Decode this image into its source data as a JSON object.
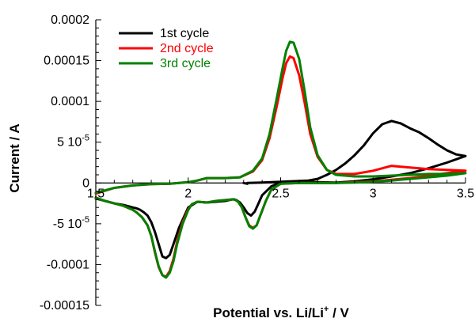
{
  "chart_data": {
    "type": "line",
    "xlabel_parts": [
      "Potential vs. Li/Li",
      "+",
      " / V"
    ],
    "ylabel": "Current / A",
    "xlim": [
      1.5,
      3.5
    ],
    "ylim": [
      -0.00015,
      0.0002
    ],
    "x_ticks": [
      {
        "value": 1.5,
        "label": "1.5"
      },
      {
        "value": 2.0,
        "label": "2"
      },
      {
        "value": 2.5,
        "label": "2.5"
      },
      {
        "value": 3.0,
        "label": "3"
      },
      {
        "value": 3.5,
        "label": "3.5"
      }
    ],
    "y_ticks": [
      {
        "value": -0.00015,
        "label": "-0.00015"
      },
      {
        "value": -0.0001,
        "label": "-0.0001"
      },
      {
        "value": -5e-05,
        "label": "-5 10"
      },
      {
        "value": 0,
        "label": "0"
      },
      {
        "value": 5e-05,
        "label": "5 10"
      },
      {
        "value": 0.0001,
        "label": "0.0001"
      },
      {
        "value": 0.00015,
        "label": "0.00015"
      },
      {
        "value": 0.0002,
        "label": "0.0002"
      }
    ],
    "y_tick_exponent": "-5",
    "grid": false,
    "legend_position": "top-left",
    "series": [
      {
        "name": "1st cycle",
        "color": "#000000",
        "x": [
          2.3,
          2.32,
          2.32,
          2.4,
          2.45,
          2.5,
          2.55,
          2.6,
          2.65,
          2.7,
          2.75,
          2.8,
          2.85,
          2.9,
          2.95,
          3.0,
          3.05,
          3.1,
          3.15,
          3.2,
          3.25,
          3.3,
          3.35,
          3.4,
          3.45,
          3.5,
          3.5,
          3.4,
          3.3,
          3.2,
          3.1,
          3.0,
          2.9,
          2.8,
          2.7,
          2.6,
          2.55,
          2.5,
          2.45,
          2.4,
          2.38,
          2.36,
          2.34,
          2.32,
          2.3,
          2.28,
          2.26,
          2.24,
          2.2,
          2.15,
          2.1,
          2.05,
          2.0,
          1.98,
          1.95,
          1.92,
          1.9,
          1.88,
          1.86,
          1.84,
          1.82,
          1.8,
          1.78,
          1.76,
          1.74,
          1.72,
          1.7,
          1.65,
          1.6,
          1.55,
          1.5
        ],
        "y": [
          0,
          -1e-06,
          0.0,
          5e-07,
          1e-06,
          1.5e-06,
          2e-06,
          2.5e-06,
          3e-06,
          5e-06,
          1e-05,
          1.6e-05,
          2.4e-05,
          3.4e-05,
          4.6e-05,
          6.1e-05,
          7.2e-05,
          7.6e-05,
          7.3e-05,
          6.7e-05,
          6.2e-05,
          5.5e-05,
          4.7e-05,
          4e-05,
          3.5e-05,
          3.3e-05,
          3.3e-05,
          2.5e-05,
          1.8e-05,
          1.2e-05,
          8e-06,
          4.5e-06,
          2e-06,
          5e-07,
          1e-06,
          1.5e-06,
          1e-06,
          5e-07,
          -4e-06,
          -1.5e-05,
          -2.5e-05,
          -3.5e-05,
          -4e-05,
          -3.7e-05,
          -3e-05,
          -2.4e-05,
          -2.1e-05,
          -2e-05,
          -2.2e-05,
          -2.3e-05,
          -2.4e-05,
          -2.3e-05,
          -3e-05,
          -4e-05,
          -5.5e-05,
          -7.5e-05,
          -8.8e-05,
          -9.2e-05,
          -9e-05,
          -7.5e-05,
          -6e-05,
          -4.8e-05,
          -4e-05,
          -3.6e-05,
          -3.3e-05,
          -3.1e-05,
          -3e-05,
          -2.7e-05,
          -2.5e-05,
          -2.2e-05,
          -1.9e-05
        ]
      },
      {
        "name": "2nd cycle",
        "color": "#ff0000",
        "x": [
          1.5,
          1.6,
          1.7,
          1.8,
          1.9,
          2.0,
          2.05,
          2.1,
          2.2,
          2.28,
          2.35,
          2.4,
          2.44,
          2.48,
          2.51,
          2.53,
          2.55,
          2.57,
          2.6,
          2.63,
          2.66,
          2.7,
          2.75,
          2.8,
          2.9,
          3.0,
          3.05,
          3.1,
          3.15,
          3.2,
          3.3,
          3.4,
          3.5,
          3.5,
          3.4,
          3.3,
          3.2,
          3.1,
          3.0,
          2.9,
          2.8,
          2.7,
          2.6,
          2.5,
          2.45,
          2.42,
          2.39,
          2.37,
          2.35,
          2.33,
          2.31,
          2.29,
          2.27,
          2.25,
          2.2,
          2.15,
          2.1,
          2.05,
          2.02,
          2.0,
          1.97,
          1.94,
          1.92,
          1.9,
          1.88,
          1.86,
          1.84,
          1.82,
          1.8,
          1.78,
          1.75,
          1.72,
          1.7,
          1.65,
          1.6,
          1.55,
          1.5
        ],
        "y": [
          -1.3e-05,
          -6e-06,
          -3e-06,
          -1.5e-06,
          -1e-06,
          1e-06,
          3e-06,
          6e-06,
          6e-06,
          7e-06,
          1.4e-05,
          2.8e-05,
          5.5e-05,
          9.5e-05,
          0.000128,
          0.000147,
          0.000155,
          0.000153,
          0.000132,
          9.8e-05,
          6e-05,
          3.2e-05,
          1.6e-05,
          1.1e-05,
          1.1e-05,
          1.5e-05,
          1.8e-05,
          2.1e-05,
          2e-05,
          1.9e-05,
          1.7e-05,
          1.6e-05,
          1.5e-05,
          1.5e-05,
          1.2e-05,
          9e-06,
          6e-06,
          4e-06,
          2e-06,
          1e-06,
          0.0,
          0.0,
          0.0,
          -1e-06,
          -8e-06,
          -2.2e-05,
          -4e-05,
          -5.2e-05,
          -5.5e-05,
          -5.2e-05,
          -4.2e-05,
          -3e-05,
          -2.3e-05,
          -2e-05,
          -2.1e-05,
          -2.2e-05,
          -2.4e-05,
          -2.3e-05,
          -2.6e-05,
          -3.2e-05,
          -4.8e-05,
          -7.2e-05,
          -9.3e-05,
          -0.000108,
          -0.000115,
          -0.000113,
          -0.000103,
          -8.5e-05,
          -6.5e-05,
          -5.2e-05,
          -4.2e-05,
          -3.6e-05,
          -3.3e-05,
          -2.8e-05,
          -2.5e-05,
          -2.2e-05,
          -1.8e-05
        ]
      },
      {
        "name": "3rd cycle",
        "color": "#008000",
        "x": [
          1.5,
          1.6,
          1.7,
          1.8,
          1.9,
          2.0,
          2.05,
          2.1,
          2.2,
          2.28,
          2.35,
          2.4,
          2.44,
          2.48,
          2.51,
          2.53,
          2.55,
          2.57,
          2.6,
          2.63,
          2.66,
          2.7,
          2.75,
          2.8,
          2.9,
          3.0,
          3.1,
          3.2,
          3.3,
          3.4,
          3.5,
          3.5,
          3.4,
          3.3,
          3.2,
          3.1,
          3.0,
          2.9,
          2.8,
          2.7,
          2.6,
          2.5,
          2.45,
          2.42,
          2.39,
          2.37,
          2.35,
          2.33,
          2.31,
          2.29,
          2.27,
          2.25,
          2.2,
          2.15,
          2.1,
          2.05,
          2.02,
          2.0,
          1.97,
          1.94,
          1.92,
          1.9,
          1.88,
          1.86,
          1.84,
          1.82,
          1.8,
          1.78,
          1.75,
          1.72,
          1.7,
          1.65,
          1.6,
          1.55,
          1.5
        ],
        "y": [
          -1.2e-05,
          -6e-06,
          -3e-06,
          -1.5e-06,
          -1e-06,
          1e-06,
          3e-06,
          6e-06,
          6e-06,
          7e-06,
          1.5e-05,
          3e-05,
          6e-05,
          0.000105,
          0.00014,
          0.000162,
          0.000173,
          0.000172,
          0.000152,
          0.000112,
          6.8e-05,
          3.4e-05,
          1.6e-05,
          1e-05,
          8e-06,
          8e-06,
          9e-06,
          1e-05,
          1.1e-05,
          1.1e-05,
          1.2e-05,
          1.2e-05,
          9e-06,
          7e-06,
          5e-06,
          3e-06,
          1.5e-06,
          5e-07,
          0.0,
          0.0,
          0.0,
          -1e-06,
          -8e-06,
          -2.2e-05,
          -4e-05,
          -5.2e-05,
          -5.6e-05,
          -5.3e-05,
          -4.2e-05,
          -3e-05,
          -2.3e-05,
          -2e-05,
          -2.1e-05,
          -2.2e-05,
          -2.4e-05,
          -2.3e-05,
          -2.6e-05,
          -3.3e-05,
          -5e-05,
          -7.5e-05,
          -9.6e-05,
          -0.00011,
          -0.000116,
          -0.000113,
          -0.000102,
          -8.4e-05,
          -6.5e-05,
          -5.2e-05,
          -4.2e-05,
          -3.6e-05,
          -3.3e-05,
          -2.8e-05,
          -2.5e-05,
          -2.2e-05,
          -1.8e-05
        ]
      }
    ]
  }
}
